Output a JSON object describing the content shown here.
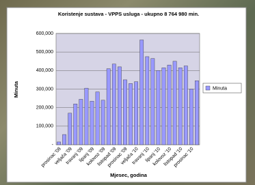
{
  "chart_data": {
    "type": "bar",
    "title": "Koristenje sustava - VPPS usluga - ukupno 8 764 980 min.",
    "y_label": "Minuta",
    "x_label": "Mjesec, godina",
    "categories": [
      "prosinac '08",
      null,
      "veljača '09",
      null,
      "travanj '09",
      null,
      "lipanj '09",
      null,
      "kolovoz '09",
      null,
      "listopad '09",
      null,
      "prosinac '09",
      null,
      "veljača '10",
      null,
      "travanj '10",
      null,
      "lipanj '10",
      null,
      "kolovoz '10",
      null,
      "listopad '10",
      null,
      "prosinac '10",
      null
    ],
    "series": [
      {
        "name": "Minuta",
        "color": "#9999ff",
        "values": [
          15000,
          55000,
          170000,
          220000,
          245000,
          305000,
          235000,
          285000,
          240000,
          410000,
          435000,
          420000,
          350000,
          330000,
          340000,
          565000,
          475000,
          465000,
          400000,
          415000,
          430000,
          450000,
          415000,
          425000,
          300000,
          345000
        ]
      }
    ],
    "ylim": [
      0,
      600000
    ],
    "yticks": [
      {
        "value": 0,
        "label": "-"
      },
      {
        "value": 100000,
        "label": "100,000"
      },
      {
        "value": 200000,
        "label": "200,000"
      },
      {
        "value": 300000,
        "label": "300,000"
      },
      {
        "value": 400000,
        "label": "400,000"
      },
      {
        "value": 500000,
        "label": "500,000"
      },
      {
        "value": 600000,
        "label": "600,000"
      }
    ],
    "grid": true,
    "legend": "right"
  }
}
